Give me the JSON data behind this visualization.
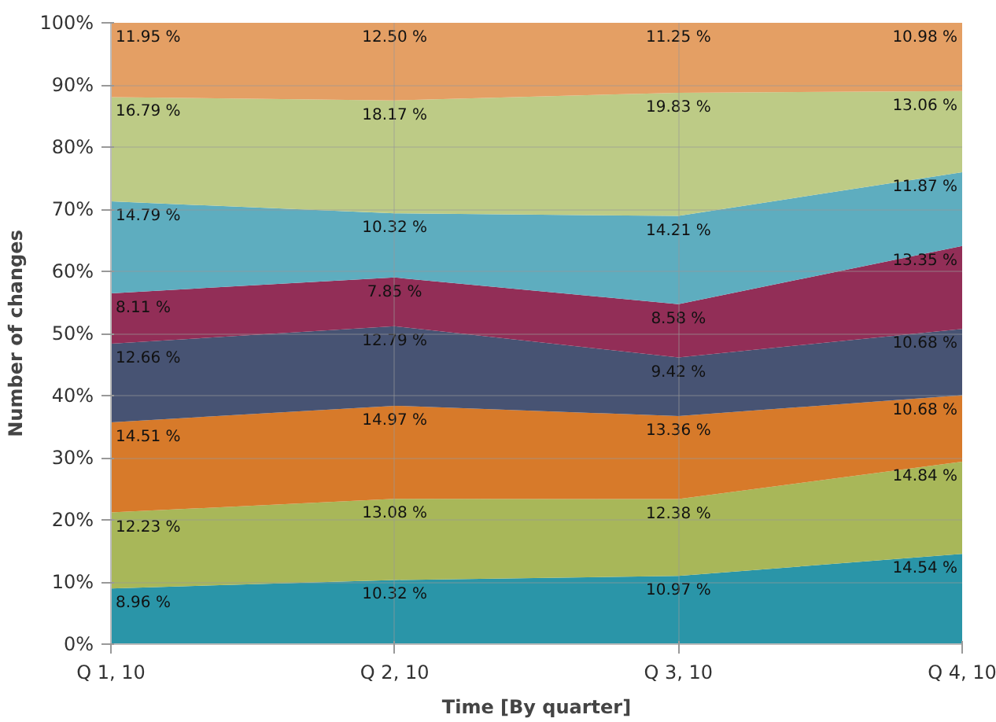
{
  "chart_data": {
    "type": "area",
    "stacked": true,
    "xlabel": "Time [By quarter]",
    "ylabel": "Number of changes",
    "categories": [
      "Q 1, 10",
      "Q 2, 10",
      "Q 3, 10",
      "Q 4, 10"
    ],
    "ylim": [
      0,
      100
    ],
    "yticks": [
      {
        "value": 0,
        "label": "0%"
      },
      {
        "value": 10,
        "label": "10%"
      },
      {
        "value": 20,
        "label": "20%"
      },
      {
        "value": 30,
        "label": "30%"
      },
      {
        "value": 40,
        "label": "40%"
      },
      {
        "value": 50,
        "label": "50%"
      },
      {
        "value": 60,
        "label": "60%"
      },
      {
        "value": 70,
        "label": "70%"
      },
      {
        "value": 80,
        "label": "80%"
      },
      {
        "value": 90,
        "label": "90%"
      },
      {
        "value": 100,
        "label": "100%"
      }
    ],
    "grid": true,
    "series": [
      {
        "color": "#1f8fa3",
        "values": [
          8.96,
          10.32,
          10.97,
          14.54
        ],
        "value_labels": [
          "8.96 %",
          "10.32 %",
          "10.97 %",
          "14.54 %"
        ]
      },
      {
        "color": "#a3b350",
        "values": [
          12.23,
          13.08,
          12.38,
          14.84
        ],
        "value_labels": [
          "12.23 %",
          "13.08 %",
          "12.38 %",
          "14.84 %"
        ]
      },
      {
        "color": "#d5731f",
        "values": [
          14.51,
          14.97,
          13.36,
          10.68
        ],
        "value_labels": [
          "14.51 %",
          "14.97 %",
          "13.36 %",
          "10.68 %"
        ]
      },
      {
        "color": "#3d4a6b",
        "values": [
          12.66,
          12.79,
          9.42,
          10.68
        ],
        "value_labels": [
          "12.66 %",
          "12.79 %",
          "9.42 %",
          "10.68 %"
        ]
      },
      {
        "color": "#8c234e",
        "values": [
          8.11,
          7.85,
          8.58,
          13.35
        ],
        "value_labels": [
          "8.11 %",
          "7.85 %",
          "8.58 %",
          "13.35 %"
        ]
      },
      {
        "color": "#55a9bc",
        "values": [
          14.79,
          10.32,
          14.21,
          11.87
        ],
        "value_labels": [
          "14.79 %",
          "10.32 %",
          "14.21 %",
          "11.87 %"
        ]
      },
      {
        "color": "#b9c880",
        "values": [
          16.79,
          18.17,
          19.83,
          13.06
        ],
        "value_labels": [
          "16.79 %",
          "18.17 %",
          "19.83 %",
          "13.06 %"
        ]
      },
      {
        "color": "#e39a5c",
        "values": [
          11.95,
          12.5,
          11.25,
          10.98
        ],
        "value_labels": [
          "11.95 %",
          "12.50 %",
          "11.25 %",
          "10.98 %"
        ]
      }
    ]
  }
}
